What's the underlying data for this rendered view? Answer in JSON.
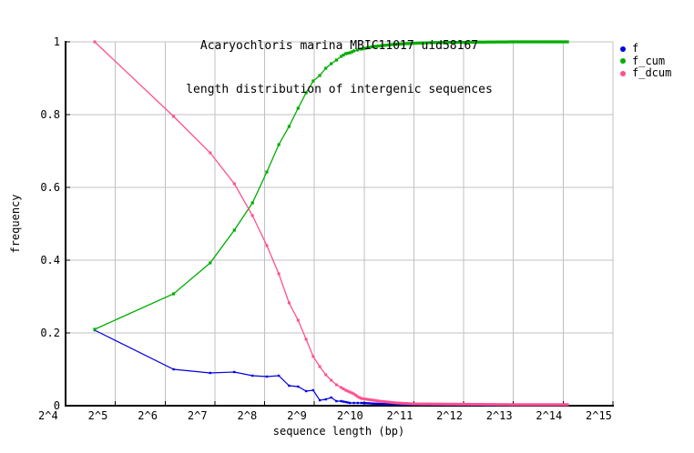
{
  "chart_data": {
    "type": "line",
    "title_line1": "Acaryochloris marina MBIC11017 uid58167",
    "title_line2": "length distribution of intergenic sequences",
    "xlabel": "sequence length (bp)",
    "ylabel": "frequency",
    "x_scale": "log2",
    "x_log2_range": [
      4,
      15
    ],
    "ylim": [
      0,
      1
    ],
    "grid": true,
    "grid_color": "#c0c0c0",
    "axis_color": "#000000",
    "legend_position": "outside-top-right",
    "x_ticks": [
      "2^4",
      "2^5",
      "2^6",
      "2^7",
      "2^8",
      "2^9",
      "2^10",
      "2^11",
      "2^12",
      "2^13",
      "2^14",
      "2^15"
    ],
    "y_ticks": [
      "0",
      "0.2",
      "0.4",
      "0.6",
      "0.8",
      "1"
    ],
    "series": [
      {
        "name": "f",
        "color": "#0000e0",
        "points": [
          [
            24,
            0.2075
          ],
          [
            72,
            0.1
          ],
          [
            120,
            0.09
          ],
          [
            168,
            0.0925
          ],
          [
            216,
            0.0825
          ],
          [
            264,
            0.08
          ],
          [
            312,
            0.0825
          ],
          [
            360,
            0.055
          ],
          [
            408,
            0.0525
          ],
          [
            456,
            0.04
          ],
          [
            504,
            0.0425
          ],
          [
            552,
            0.015
          ],
          [
            600,
            0.0175
          ],
          [
            648,
            0.0225
          ],
          [
            696,
            0.0125
          ],
          [
            744,
            0.0125
          ],
          [
            792,
            0.01
          ],
          [
            840,
            0.0075
          ],
          [
            888,
            0.0075
          ],
          [
            936,
            0.0075
          ],
          [
            984,
            0.0075
          ],
          [
            1270,
            0.005
          ],
          [
            1625,
            0.004
          ],
          [
            2048,
            0.0035
          ],
          [
            2800,
            0.003
          ],
          [
            4096,
            0.0025
          ],
          [
            6000,
            0.002
          ],
          [
            8192,
            0.002
          ],
          [
            12000,
            0.002
          ],
          [
            17400,
            0.002
          ]
        ]
      },
      {
        "name": "f_cum",
        "color": "#00ad00",
        "points": [
          [
            24,
            0.21
          ],
          [
            72,
            0.3075
          ],
          [
            120,
            0.3925
          ],
          [
            168,
            0.4825
          ],
          [
            216,
            0.5575
          ],
          [
            264,
            0.6425
          ],
          [
            312,
            0.7175
          ],
          [
            360,
            0.7675
          ],
          [
            408,
            0.8175
          ],
          [
            456,
            0.86
          ],
          [
            504,
            0.8925
          ],
          [
            552,
            0.9075
          ],
          [
            600,
            0.9275
          ],
          [
            648,
            0.94
          ],
          [
            696,
            0.95
          ],
          [
            744,
            0.96
          ],
          [
            792,
            0.9675
          ],
          [
            840,
            0.97
          ],
          [
            888,
            0.975
          ],
          [
            936,
            0.9775
          ],
          [
            984,
            0.98
          ],
          [
            1180,
            0.9875
          ],
          [
            1550,
            0.993
          ],
          [
            2048,
            0.996
          ],
          [
            2660,
            0.998
          ],
          [
            3500,
            0.9985
          ],
          [
            4600,
            0.999
          ],
          [
            6000,
            0.9995
          ],
          [
            8192,
            1.0
          ],
          [
            12000,
            1.0
          ],
          [
            17400,
            1.0
          ]
        ]
      },
      {
        "name": "f_dcum",
        "color": "#ff4f8f",
        "points": [
          [
            24,
            1.0
          ],
          [
            72,
            0.795
          ],
          [
            120,
            0.695
          ],
          [
            168,
            0.61
          ],
          [
            216,
            0.5225
          ],
          [
            264,
            0.44
          ],
          [
            312,
            0.3625
          ],
          [
            360,
            0.2825
          ],
          [
            408,
            0.235
          ],
          [
            456,
            0.1825
          ],
          [
            504,
            0.135
          ],
          [
            552,
            0.1075
          ],
          [
            600,
            0.085
          ],
          [
            648,
            0.07
          ],
          [
            696,
            0.0575
          ],
          [
            744,
            0.05
          ],
          [
            792,
            0.0425
          ],
          [
            840,
            0.0375
          ],
          [
            888,
            0.0325
          ],
          [
            936,
            0.025
          ],
          [
            984,
            0.02
          ],
          [
            1270,
            0.0125
          ],
          [
            1625,
            0.0075
          ],
          [
            2048,
            0.005
          ],
          [
            2800,
            0.0045
          ],
          [
            4096,
            0.004
          ],
          [
            6000,
            0.0035
          ],
          [
            8192,
            0.003
          ],
          [
            12000,
            0.003
          ],
          [
            17400,
            0.003
          ]
        ]
      }
    ]
  }
}
